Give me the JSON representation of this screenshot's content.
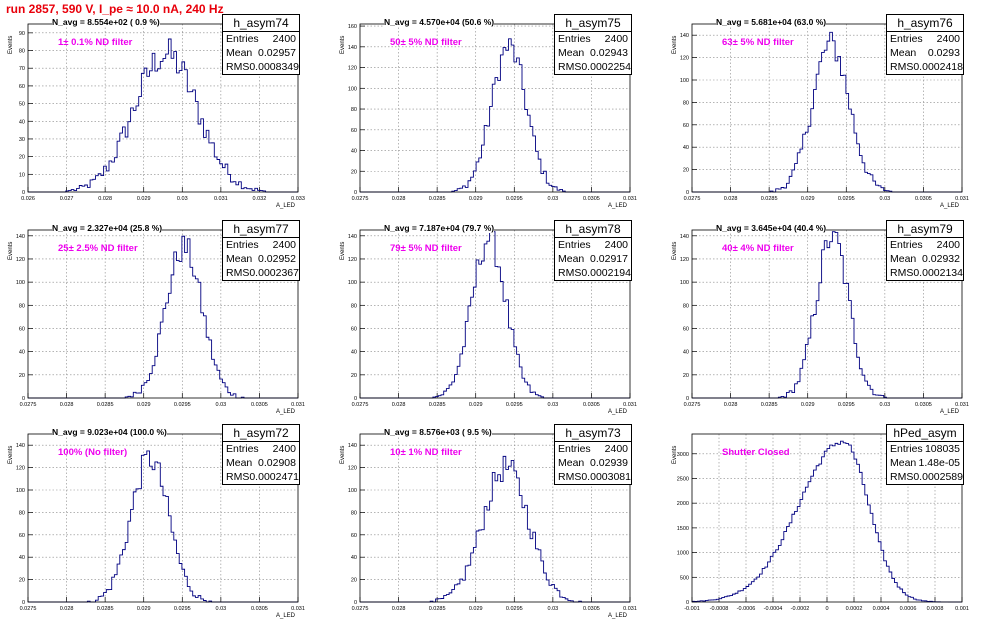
{
  "title": "run 2857,   590 V, I_pe ≈ 10.0 nA, 240 Hz",
  "colors": {
    "title": "#e8000b",
    "annotation": "#ee00ee",
    "histogram": "#000080"
  },
  "chart_data": [
    {
      "type": "bar",
      "name": "h_asym74",
      "entries": "2400",
      "mean": "0.02957",
      "rms": "0.0008349",
      "n_avg": "N_avg = 8.554e+02 ( 0.9 %)",
      "filter": "1± 0.1% ND filter",
      "ylabel": "Events",
      "xlabel": "A_LED",
      "xlim": [
        0.026,
        0.033
      ],
      "ylim": [
        0,
        95
      ],
      "xticks": [
        "0.026",
        "0.027",
        "0.028",
        "0.029",
        "0.03",
        "0.031",
        "0.032",
        "0.033"
      ],
      "yticks": [
        0,
        10,
        20,
        30,
        40,
        50,
        60,
        70,
        80,
        90
      ],
      "dist": {
        "kind": "gauss",
        "mu": 0.02957,
        "sigma": 0.00082,
        "peak": 78
      }
    },
    {
      "type": "bar",
      "name": "h_asym75",
      "entries": "2400",
      "mean": "0.02943",
      "rms": "0.0002254",
      "n_avg": "N_avg = 4.570e+04 (50.6 %)",
      "filter": "50± 5% ND filter",
      "ylabel": "Events",
      "xlabel": "A_LED",
      "xlim": [
        0.0275,
        0.031
      ],
      "ylim": [
        0,
        162
      ],
      "xticks": [
        "0.0275",
        "0.028",
        "0.0285",
        "0.029",
        "0.0295",
        "0.03",
        "0.0305",
        "0.031"
      ],
      "yticks": [
        0,
        20,
        40,
        60,
        80,
        100,
        120,
        140,
        160
      ],
      "dist": {
        "kind": "gauss",
        "mu": 0.02943,
        "sigma": 0.000225,
        "peak": 140
      }
    },
    {
      "type": "bar",
      "name": "h_asym76",
      "entries": "2400",
      "mean": "0.0293",
      "rms": "0.0002418",
      "n_avg": "N_avg = 5.681e+04 (63.0 %)",
      "filter": "63± 5% ND filter",
      "ylabel": "Events",
      "xlabel": "A_LED",
      "xlim": [
        0.0275,
        0.031
      ],
      "ylim": [
        0,
        150
      ],
      "xticks": [
        "0.0275",
        "0.028",
        "0.0285",
        "0.029",
        "0.0295",
        "0.03",
        "0.0305",
        "0.031"
      ],
      "yticks": [
        0,
        20,
        40,
        60,
        80,
        100,
        120,
        140
      ],
      "dist": {
        "kind": "gauss",
        "mu": 0.0293,
        "sigma": 0.00024,
        "peak": 132
      }
    },
    {
      "type": "bar",
      "name": "h_asym77",
      "entries": "2400",
      "mean": "0.02952",
      "rms": "0.0002367",
      "n_avg": "N_avg = 2.327e+04 (25.8 %)",
      "filter": "25± 2.5% ND filter",
      "ylabel": "Events",
      "xlabel": "A_LED",
      "xlim": [
        0.0275,
        0.031
      ],
      "ylim": [
        0,
        145
      ],
      "xticks": [
        "0.0275",
        "0.028",
        "0.0285",
        "0.029",
        "0.0295",
        "0.03",
        "0.0305",
        "0.031"
      ],
      "yticks": [
        0,
        20,
        40,
        60,
        80,
        100,
        120,
        140
      ],
      "dist": {
        "kind": "gauss",
        "mu": 0.02952,
        "sigma": 0.000236,
        "peak": 130
      }
    },
    {
      "type": "bar",
      "name": "h_asym78",
      "entries": "2400",
      "mean": "0.02917",
      "rms": "0.0002194",
      "n_avg": "N_avg = 7.187e+04 (79.7 %)",
      "filter": "79± 5% ND filter",
      "ylabel": "Events",
      "xlabel": "A_LED",
      "xlim": [
        0.0275,
        0.031
      ],
      "ylim": [
        0,
        145
      ],
      "xticks": [
        "0.0275",
        "0.028",
        "0.0285",
        "0.029",
        "0.0295",
        "0.03",
        "0.0305",
        "0.031"
      ],
      "yticks": [
        0,
        20,
        40,
        60,
        80,
        100,
        120,
        140
      ],
      "dist": {
        "kind": "gauss",
        "mu": 0.02917,
        "sigma": 0.00022,
        "peak": 138
      }
    },
    {
      "type": "bar",
      "name": "h_asym79",
      "entries": "2400",
      "mean": "0.02932",
      "rms": "0.0002134",
      "n_avg": "N_avg = 3.645e+04 (40.4 %)",
      "filter": "40± 4% ND filter",
      "ylabel": "Events",
      "xlabel": "A_LED",
      "xlim": [
        0.0275,
        0.031
      ],
      "ylim": [
        0,
        145
      ],
      "xticks": [
        "0.0275",
        "0.028",
        "0.0285",
        "0.029",
        "0.0295",
        "0.03",
        "0.0305",
        "0.031"
      ],
      "yticks": [
        0,
        20,
        40,
        60,
        80,
        100,
        120,
        140
      ],
      "dist": {
        "kind": "gauss",
        "mu": 0.02932,
        "sigma": 0.00021,
        "peak": 140
      }
    },
    {
      "type": "bar",
      "name": "h_asym72",
      "entries": "2400",
      "mean": "0.02908",
      "rms": "0.0002471",
      "n_avg": "N_avg = 9.023e+04 (100.0 %)",
      "filter": "100% (No filter)",
      "ylabel": "Events",
      "xlabel": "A_LED",
      "xlim": [
        0.0275,
        0.031
      ],
      "ylim": [
        0,
        150
      ],
      "xticks": [
        "0.0275",
        "0.028",
        "0.0285",
        "0.029",
        "0.0295",
        "0.03",
        "0.0305",
        "0.031"
      ],
      "yticks": [
        0,
        20,
        40,
        60,
        80,
        100,
        120,
        140
      ],
      "dist": {
        "kind": "gauss",
        "mu": 0.02908,
        "sigma": 0.000245,
        "peak": 128
      }
    },
    {
      "type": "bar",
      "name": "h_asym73",
      "entries": "2400",
      "mean": "0.02939",
      "rms": "0.0003081",
      "n_avg": "N_avg = 8.576e+03 ( 9.5 %)",
      "filter": "10± 1% ND filter",
      "ylabel": "Events",
      "xlabel": "A_LED",
      "xlim": [
        0.0275,
        0.031
      ],
      "ylim": [
        0,
        150
      ],
      "xticks": [
        "0.0275",
        "0.028",
        "0.0285",
        "0.029",
        "0.0295",
        "0.03",
        "0.0305",
        "0.031"
      ],
      "yticks": [
        0,
        20,
        40,
        60,
        80,
        100,
        120,
        140
      ],
      "dist": {
        "kind": "gauss",
        "mu": 0.02939,
        "sigma": 0.0003,
        "peak": 120
      }
    },
    {
      "type": "bar",
      "name": "hPed_asym",
      "entries": "108035",
      "mean": "1.48e-05",
      "rms": "0.0002589",
      "n_avg": "",
      "filter": "Shutter Closed",
      "ylabel": "Events",
      "xlabel": "",
      "xlim": [
        -0.001,
        0.001
      ],
      "ylim": [
        0,
        3400
      ],
      "xticks": [
        "-0.001",
        "-0.0008",
        "-0.0006",
        "-0.0004",
        "-0.0002",
        "0",
        "0.0002",
        "0.0004",
        "0.0006",
        "0.0008",
        "0.001"
      ],
      "yticks": [
        0,
        500,
        1000,
        1500,
        2000,
        2500,
        3000
      ],
      "dist": {
        "kind": "skew",
        "mu": 0.00012,
        "sigmaL": 0.00033,
        "sigmaR": 0.00019,
        "peak": 3250
      }
    }
  ]
}
